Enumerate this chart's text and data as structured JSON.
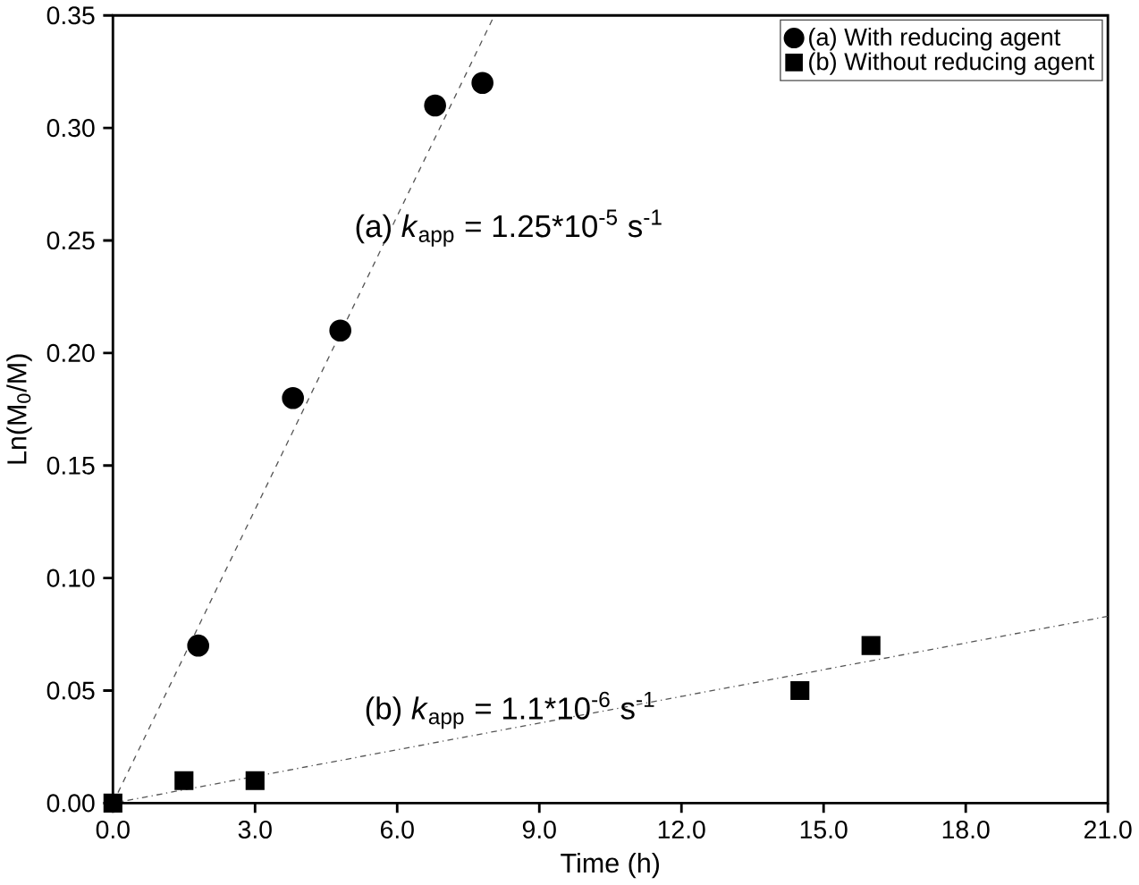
{
  "chart_data": {
    "type": "scatter",
    "xlabel": "Time (h)",
    "ylabel": "Ln(M$_{0}$/M)",
    "xlim": [
      0,
      21
    ],
    "ylim": [
      0,
      0.35
    ],
    "xticks": [
      {
        "value": 0,
        "label": "0.0"
      },
      {
        "value": 3,
        "label": "3.0"
      },
      {
        "value": 6,
        "label": "6.0"
      },
      {
        "value": 9,
        "label": "9.0"
      },
      {
        "value": 12,
        "label": "12.0"
      },
      {
        "value": 15,
        "label": "15.0"
      },
      {
        "value": 18,
        "label": "18.0"
      },
      {
        "value": 21,
        "label": "21.0"
      }
    ],
    "yticks": [
      {
        "value": 0,
        "label": "0.00"
      },
      {
        "value": 0.05,
        "label": "0.05"
      },
      {
        "value": 0.1,
        "label": "0.10"
      },
      {
        "value": 0.15,
        "label": "0.15"
      },
      {
        "value": 0.2,
        "label": "0.20"
      },
      {
        "value": 0.25,
        "label": "0.25"
      },
      {
        "value": 0.3,
        "label": "0.30"
      },
      {
        "value": 0.35,
        "label": "0.35"
      }
    ],
    "legend": "top right",
    "series": [
      {
        "name": "(a) With reducing agent",
        "marker": "circle",
        "color": "#000000",
        "x": [
          1.8,
          3.8,
          4.8,
          6.8,
          7.8
        ],
        "values": [
          0.07,
          0.18,
          0.21,
          0.31,
          0.32
        ]
      },
      {
        "name": "(b) Without reducing agent",
        "marker": "square",
        "color": "#000000",
        "x": [
          0,
          1.5,
          3,
          14.5,
          16
        ],
        "values": [
          0,
          0.01,
          0.01,
          0.05,
          0.07
        ]
      },
      {
        "type": "line",
        "line_style": "dashed",
        "color": "#555555",
        "x": [
          0,
          8.05
        ],
        "values": [
          0,
          0.35
        ]
      },
      {
        "type": "line",
        "line_style": "dashdotted",
        "color": "#555555",
        "x": [
          0,
          21
        ],
        "values": [
          0,
          0.083
        ]
      }
    ],
    "annotations": [
      "(a)  *k*$_{app}$ = 1.25*10$^{-5}$ s$^{-1}$",
      "(b) *k*$_{app}$ = 1.1*10$^{-6}$ s$^{-1}$"
    ]
  }
}
